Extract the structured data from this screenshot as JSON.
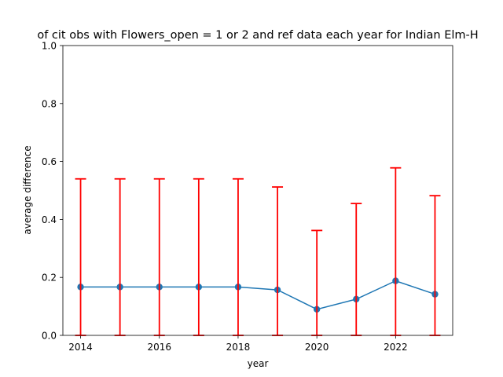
{
  "chart_data": {
    "type": "line",
    "title": "of cit obs with Flowers_open = 1 or 2 and ref data each year for Indian Elm-H",
    "xlabel": "year",
    "ylabel": "average difference",
    "xlim": [
      2013.55,
      2023.45
    ],
    "ylim": [
      0,
      1.0
    ],
    "xticks": [
      2014,
      2016,
      2018,
      2020,
      2022
    ],
    "yticks": [
      0.0,
      0.2,
      0.4,
      0.6,
      0.8,
      1.0
    ],
    "ytick_labels": [
      "0.0",
      "0.2",
      "0.4",
      "0.6",
      "0.8",
      "1.0"
    ],
    "series": [
      {
        "name": "average difference",
        "color": "#1f77b4",
        "x": [
          2014,
          2015,
          2016,
          2017,
          2018,
          2019,
          2020,
          2021,
          2022,
          2023
        ],
        "y": [
          0.167,
          0.167,
          0.167,
          0.167,
          0.167,
          0.157,
          0.09,
          0.125,
          0.188,
          0.142
        ],
        "error_low": [
          0.0,
          0.0,
          0.0,
          0.0,
          0.0,
          0.0,
          0.0,
          0.0,
          0.0,
          0.0
        ],
        "error_high": [
          0.54,
          0.54,
          0.54,
          0.54,
          0.54,
          0.512,
          0.362,
          0.455,
          0.578,
          0.482
        ],
        "error_color": "#ff0000"
      }
    ]
  }
}
